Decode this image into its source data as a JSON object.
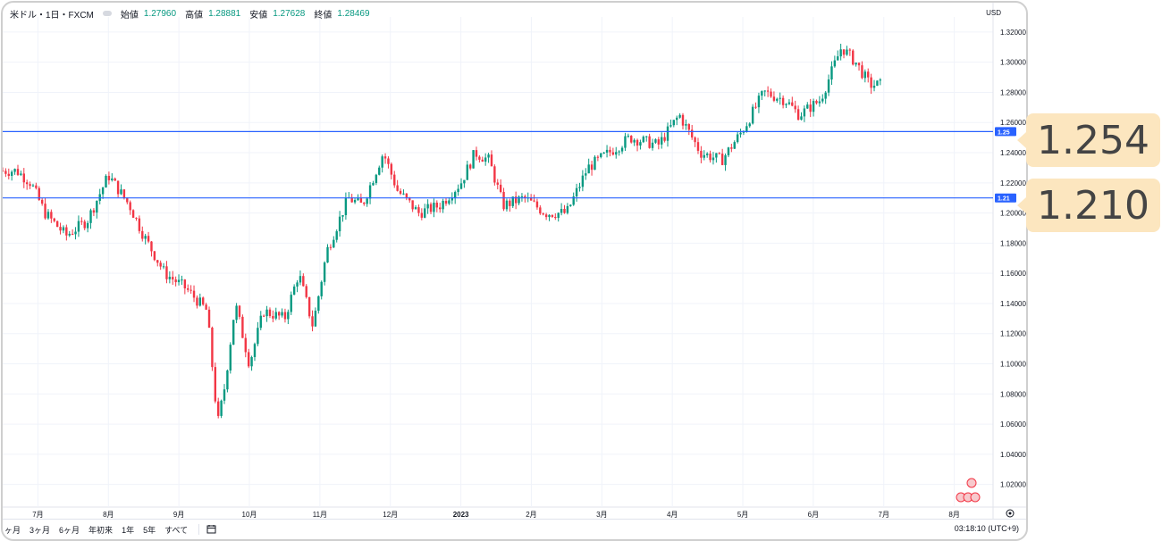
{
  "legend": {
    "symbol": "米ドル・1日・FXCM",
    "open_label": "始値",
    "open_value": "1.27960",
    "high_label": "高値",
    "high_value": "1.28881",
    "low_label": "安値",
    "low_value": "1.27628",
    "close_label": "終値",
    "close_value": "1.28469"
  },
  "currency_label": "USD",
  "bottom_bar": {
    "ranges": [
      "ヶ月",
      "3ヶ月",
      "6ヶ月",
      "年初来",
      "1年",
      "5年",
      "すべて"
    ],
    "clock": "03:18:10 (UTC+9)"
  },
  "colors": {
    "up": "#089981",
    "down": "#f23645",
    "hline": "#2962ff",
    "callout": "#fce6bf"
  },
  "icons": [
    "calendar-range-icon",
    "settings-gear-icon",
    "event-flag-icon"
  ],
  "chart_data": {
    "type": "candlestick",
    "title": "",
    "ylim": [
      1.005,
      1.33
    ],
    "y_ticks": [
      "1.32000",
      "1.30000",
      "1.28000",
      "1.26000",
      "1.24000",
      "1.22000",
      "1.20000",
      "1.18000",
      "1.16000",
      "1.14000",
      "1.12000",
      "1.10000",
      "1.08000",
      "1.06000",
      "1.04000",
      "1.02000"
    ],
    "x_tick_labels": [
      "7月",
      "8月",
      "9月",
      "10月",
      "11月",
      "12月",
      "2023",
      "2月",
      "3月",
      "4月",
      "5月",
      "6月",
      "7月",
      "8月"
    ],
    "x_ticks_month_index": [
      1.5,
      2.5,
      3.5,
      4.5,
      5.5,
      6.5,
      7.5,
      8.5,
      9.5,
      10.5,
      11.5,
      12.5,
      13.5,
      14.5
    ],
    "x_range_months": [
      1,
      15.05
    ],
    "close_path": [
      [
        1.0,
        1.228
      ],
      [
        1.2,
        1.228
      ],
      [
        1.4,
        1.22
      ],
      [
        1.6,
        1.2
      ],
      [
        1.9,
        1.185
      ],
      [
        2.2,
        1.195
      ],
      [
        2.5,
        1.225
      ],
      [
        2.8,
        1.205
      ],
      [
        3.0,
        1.185
      ],
      [
        3.3,
        1.16
      ],
      [
        3.6,
        1.15
      ],
      [
        3.9,
        1.135
      ],
      [
        4.05,
        1.06
      ],
      [
        4.15,
        1.085
      ],
      [
        4.3,
        1.14
      ],
      [
        4.5,
        1.1
      ],
      [
        4.7,
        1.135
      ],
      [
        5.0,
        1.13
      ],
      [
        5.2,
        1.16
      ],
      [
        5.4,
        1.125
      ],
      [
        5.6,
        1.175
      ],
      [
        5.9,
        1.21
      ],
      [
        6.1,
        1.205
      ],
      [
        6.4,
        1.24
      ],
      [
        6.6,
        1.215
      ],
      [
        6.9,
        1.2
      ],
      [
        7.2,
        1.205
      ],
      [
        7.5,
        1.22
      ],
      [
        7.7,
        1.24
      ],
      [
        7.9,
        1.235
      ],
      [
        8.1,
        1.205
      ],
      [
        8.4,
        1.21
      ],
      [
        8.7,
        1.2
      ],
      [
        9.0,
        1.2
      ],
      [
        9.3,
        1.23
      ],
      [
        9.6,
        1.24
      ],
      [
        9.9,
        1.25
      ],
      [
        10.3,
        1.245
      ],
      [
        10.6,
        1.265
      ],
      [
        10.9,
        1.24
      ],
      [
        11.2,
        1.235
      ],
      [
        11.5,
        1.255
      ],
      [
        11.8,
        1.28
      ],
      [
        12.1,
        1.275
      ],
      [
        12.3,
        1.265
      ],
      [
        12.6,
        1.275
      ],
      [
        12.9,
        1.31
      ],
      [
        13.1,
        1.3
      ],
      [
        13.3,
        1.285
      ],
      [
        13.45,
        1.285
      ]
    ],
    "horizontal_lines": [
      {
        "value": 1.254,
        "axis_label": "1.25",
        "callout": "1.254"
      },
      {
        "value": 1.21,
        "axis_label": "1.21",
        "callout": "1.210"
      }
    ]
  }
}
